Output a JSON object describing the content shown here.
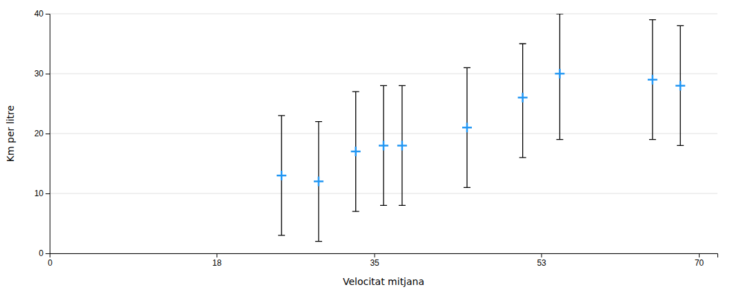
{
  "chart_data": {
    "type": "scatter",
    "xlabel": "Velocitat mitjana",
    "ylabel": "Km per litre",
    "x": [
      25,
      29,
      33,
      36,
      38,
      45,
      51,
      55,
      65,
      68
    ],
    "values": [
      13,
      12,
      17,
      18,
      18,
      21,
      26,
      30,
      29,
      28
    ],
    "y_upper": [
      23,
      22,
      27,
      28,
      28,
      31,
      35,
      40,
      39,
      38
    ],
    "y_lower": [
      3,
      2,
      7,
      8,
      8,
      11,
      16,
      19,
      19,
      18
    ],
    "xlim": [
      0,
      72
    ],
    "ylim": [
      0,
      40
    ],
    "xticks": [
      0,
      18,
      35,
      53,
      70
    ],
    "yticks": [
      0,
      10,
      20,
      30,
      40
    ],
    "marker": "plus",
    "color": "#2196F3",
    "grid": "y"
  }
}
